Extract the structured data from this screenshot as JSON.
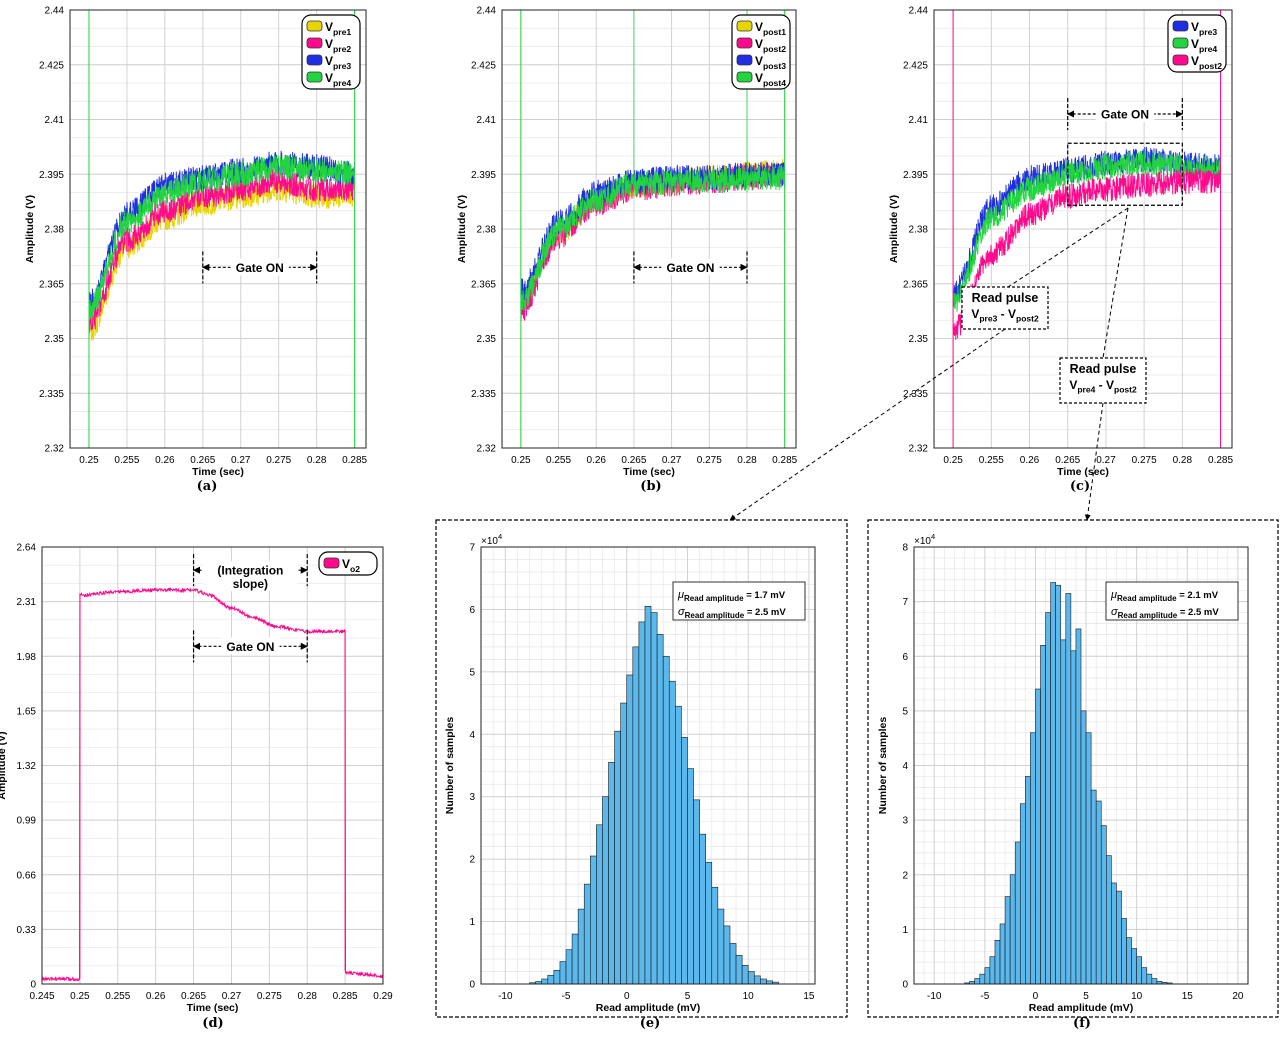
{
  "panels": [
    {
      "id": "a",
      "caption": "(a)",
      "chart_data": {
        "type": "line",
        "xlabel": "Time (sec)",
        "ylabel": "Amplitude (V)",
        "xlim": [
          0.2475,
          0.2865
        ],
        "ylim": [
          2.32,
          2.44
        ],
        "x_ticks": [
          "0.25",
          "0.255",
          "0.26",
          "0.265",
          "0.27",
          "0.275",
          "0.28",
          "0.285"
        ],
        "x_tick_values": [
          0.25,
          0.255,
          0.26,
          0.265,
          0.27,
          0.275,
          0.28,
          0.285
        ],
        "y_ticks": [
          "2.32",
          "2.335",
          "2.35",
          "2.365",
          "2.38",
          "2.395",
          "2.41",
          "2.425",
          "2.44"
        ],
        "y_tick_values": [
          2.32,
          2.335,
          2.35,
          2.365,
          2.38,
          2.395,
          2.41,
          2.425,
          2.44
        ],
        "grid": true,
        "legend_position": "top-right",
        "series": [
          {
            "name": "V",
            "sub": "pre1",
            "color": "#e8d400",
            "x": [
              0.25,
              0.255,
              0.26,
              0.265,
              0.27,
              0.275,
              0.28,
              0.285
            ],
            "values": [
              2.352,
              2.375,
              2.383,
              2.387,
              2.389,
              2.391,
              2.389,
              2.389
            ]
          },
          {
            "name": "V",
            "sub": "pre2",
            "color": "#ff0a8c",
            "x": [
              0.25,
              0.255,
              0.26,
              0.265,
              0.27,
              0.275,
              0.28,
              0.285
            ],
            "values": [
              2.354,
              2.377,
              2.385,
              2.389,
              2.391,
              2.393,
              2.391,
              2.391
            ]
          },
          {
            "name": "V",
            "sub": "pre3",
            "color": "#1f2ee0",
            "x": [
              0.25,
              0.255,
              0.26,
              0.265,
              0.27,
              0.275,
              0.28,
              0.285
            ],
            "values": [
              2.36,
              2.384,
              2.392,
              2.394,
              2.396,
              2.398,
              2.397,
              2.395
            ]
          },
          {
            "name": "V",
            "sub": "pre4",
            "color": "#22d440",
            "x": [
              0.25,
              0.255,
              0.26,
              0.265,
              0.27,
              0.275,
              0.28,
              0.285
            ],
            "values": [
              2.358,
              2.382,
              2.39,
              2.393,
              2.395,
              2.397,
              2.396,
              2.395
            ]
          }
        ],
        "annotations": [
          {
            "text": "Gate ON",
            "x_start": 0.265,
            "x_end": 0.28,
            "y": 2.3695
          }
        ]
      }
    },
    {
      "id": "b",
      "caption": "(b)",
      "chart_data": {
        "type": "line",
        "xlabel": "Time (sec)",
        "ylabel": "Amplitude (V)",
        "xlim": [
          0.2475,
          0.2865
        ],
        "ylim": [
          2.32,
          2.44
        ],
        "x_ticks": [
          "0.25",
          "0.255",
          "0.26",
          "0.265",
          "0.27",
          "0.275",
          "0.28",
          "0.285"
        ],
        "x_tick_values": [
          0.25,
          0.255,
          0.26,
          0.265,
          0.27,
          0.275,
          0.28,
          0.285
        ],
        "y_ticks": [
          "2.32",
          "2.335",
          "2.35",
          "2.365",
          "2.38",
          "2.395",
          "2.41",
          "2.425",
          "2.44"
        ],
        "y_tick_values": [
          2.32,
          2.335,
          2.35,
          2.365,
          2.38,
          2.395,
          2.41,
          2.425,
          2.44
        ],
        "grid": true,
        "legend_position": "top-right",
        "series": [
          {
            "name": "V",
            "sub": "post1",
            "color": "#e8d400",
            "x": [
              0.25,
              0.255,
              0.26,
              0.265,
              0.27,
              0.275,
              0.28,
              0.285
            ],
            "values": [
              2.36,
              2.379,
              2.388,
              2.392,
              2.393,
              2.394,
              2.395,
              2.396
            ]
          },
          {
            "name": "V",
            "sub": "post2",
            "color": "#ff0a8c",
            "x": [
              0.25,
              0.255,
              0.26,
              0.265,
              0.27,
              0.275,
              0.28,
              0.285
            ],
            "values": [
              2.358,
              2.378,
              2.387,
              2.391,
              2.392,
              2.393,
              2.394,
              2.395
            ]
          },
          {
            "name": "V",
            "sub": "post3",
            "color": "#1f2ee0",
            "x": [
              0.25,
              0.255,
              0.26,
              0.265,
              0.27,
              0.275,
              0.28,
              0.285
            ],
            "values": [
              2.363,
              2.382,
              2.39,
              2.393,
              2.394,
              2.394,
              2.395,
              2.395
            ]
          },
          {
            "name": "V",
            "sub": "post4",
            "color": "#22d440",
            "x": [
              0.25,
              0.255,
              0.26,
              0.265,
              0.27,
              0.275,
              0.28,
              0.285
            ],
            "values": [
              2.36,
              2.38,
              2.388,
              2.392,
              2.393,
              2.393,
              2.394,
              2.394
            ]
          }
        ],
        "annotations": [
          {
            "text": "Gate ON",
            "x_start": 0.265,
            "x_end": 0.28,
            "y": 2.3695
          }
        ]
      }
    },
    {
      "id": "c",
      "caption": "(c)",
      "chart_data": {
        "type": "line",
        "xlabel": "Time (sec)",
        "ylabel": "Amplitude (V)",
        "xlim": [
          0.2475,
          0.2865
        ],
        "ylim": [
          2.32,
          2.44
        ],
        "x_ticks": [
          "0.25",
          "0.255",
          "0.26",
          "0.265",
          "0.27",
          "0.275",
          "0.28",
          "0.285"
        ],
        "x_tick_values": [
          0.25,
          0.255,
          0.26,
          0.265,
          0.27,
          0.275,
          0.28,
          0.285
        ],
        "y_ticks": [
          "2.32",
          "2.335",
          "2.35",
          "2.365",
          "2.38",
          "2.395",
          "2.41",
          "2.425",
          "2.44"
        ],
        "y_tick_values": [
          2.32,
          2.335,
          2.35,
          2.365,
          2.38,
          2.395,
          2.41,
          2.425,
          2.44
        ],
        "grid": true,
        "legend_position": "top-right",
        "series": [
          {
            "name": "V",
            "sub": "pre3",
            "color": "#1f2ee0",
            "x": [
              0.25,
              0.255,
              0.26,
              0.265,
              0.27,
              0.275,
              0.28,
              0.285
            ],
            "values": [
              2.362,
              2.386,
              2.394,
              2.396,
              2.398,
              2.399,
              2.398,
              2.397
            ]
          },
          {
            "name": "V",
            "sub": "pre4",
            "color": "#22d440",
            "x": [
              0.25,
              0.255,
              0.26,
              0.265,
              0.27,
              0.275,
              0.28,
              0.285
            ],
            "values": [
              2.36,
              2.383,
              2.391,
              2.395,
              2.397,
              2.398,
              2.397,
              2.396
            ]
          },
          {
            "name": "V",
            "sub": "post2",
            "color": "#ff0a8c",
            "x": [
              0.25,
              0.255,
              0.26,
              0.265,
              0.27,
              0.275,
              0.28,
              0.285
            ],
            "values": [
              2.352,
              2.373,
              2.384,
              2.389,
              2.391,
              2.392,
              2.393,
              2.393
            ]
          }
        ],
        "annotations": [
          {
            "text": "Gate ON",
            "x_start": 0.265,
            "x_end": 0.28,
            "y": 2.4115
          },
          {
            "type": "box",
            "x_start": 0.265,
            "x_end": 0.28,
            "y_start": 2.3865,
            "y_end": 2.4035
          },
          {
            "type": "callout",
            "title": "Read pulse",
            "v1": "V",
            "v1_sub": "pre3",
            "sep": " - ",
            "v2": "V",
            "v2_sub": "post2",
            "target": "e"
          },
          {
            "type": "callout",
            "title": "Read pulse",
            "v1": "V",
            "v1_sub": "pre4",
            "sep": " - ",
            "v2": "V",
            "v2_sub": "post2",
            "target": "f"
          }
        ]
      }
    },
    {
      "id": "d",
      "caption": "(d)",
      "chart_data": {
        "type": "line",
        "xlabel": "Time (sec)",
        "ylabel": "Amplitude (V)",
        "xlim": [
          0.245,
          0.29
        ],
        "ylim": [
          0,
          2.64
        ],
        "x_ticks": [
          "0.245",
          "0.25",
          "0.255",
          "0.26",
          "0.265",
          "0.27",
          "0.275",
          "0.28",
          "0.285",
          "0.29"
        ],
        "x_tick_values": [
          0.245,
          0.25,
          0.255,
          0.26,
          0.265,
          0.27,
          0.275,
          0.28,
          0.285,
          0.29
        ],
        "y_ticks": [
          "0",
          "0.33",
          "0.66",
          "0.99",
          "1.32",
          "1.65",
          "1.98",
          "2.31",
          "2.64"
        ],
        "y_tick_values": [
          0,
          0.33,
          0.66,
          0.99,
          1.32,
          1.65,
          1.98,
          2.31,
          2.64
        ],
        "grid": true,
        "legend_position": "top-right",
        "series": [
          {
            "name": "V",
            "sub": "o2",
            "color": "#ff0a8c",
            "x": [
              0.245,
              0.2499,
              0.25,
              0.2501,
              0.255,
              0.26,
              0.265,
              0.267,
              0.27,
              0.273,
              0.276,
              0.28,
              0.2849,
              0.285,
              0.2851,
              0.29
            ],
            "values": [
              0.03,
              0.03,
              2.36,
              2.35,
              2.37,
              2.38,
              2.38,
              2.35,
              2.27,
              2.21,
              2.16,
              2.13,
              2.13,
              0.08,
              0.08,
              0.05
            ]
          }
        ],
        "annotations": [
          {
            "text": "(Integration",
            "text2": "slope)",
            "x_start": 0.265,
            "x_end": 0.28,
            "y": 2.5
          },
          {
            "text": "Gate ON",
            "x_start": 0.265,
            "x_end": 0.28,
            "y": 2.04
          }
        ]
      }
    },
    {
      "id": "e",
      "caption": "(e)",
      "chart_data": {
        "type": "bar",
        "xlabel": "Read amplitude (mV)",
        "ylabel": "Number of samples",
        "y_exponent_base": "×10",
        "y_exponent": "4",
        "xlim": [
          -12,
          15.5
        ],
        "ylim": [
          0,
          7
        ],
        "x_ticks": [
          "-10",
          "-5",
          "0",
          "5",
          "10",
          "15"
        ],
        "x_tick_values": [
          -10,
          -5,
          0,
          5,
          10,
          15
        ],
        "y_ticks": [
          "0",
          "1",
          "2",
          "3",
          "4",
          "5",
          "6",
          "7"
        ],
        "y_tick_values": [
          0,
          1,
          2,
          3,
          4,
          5,
          6,
          7
        ],
        "grid": true,
        "bin_start": -8,
        "bin_width": 0.5,
        "color": "#5bb8ec",
        "values": [
          0.02,
          0.04,
          0.08,
          0.14,
          0.22,
          0.36,
          0.55,
          0.8,
          1.2,
          1.6,
          2.05,
          2.55,
          3.0,
          3.55,
          4.05,
          4.5,
          4.95,
          5.4,
          5.8,
          6.05,
          5.95,
          5.6,
          5.25,
          4.85,
          4.45,
          3.95,
          3.45,
          2.95,
          2.4,
          1.95,
          1.55,
          1.2,
          0.93,
          0.65,
          0.46,
          0.3,
          0.2,
          0.13,
          0.08,
          0.05,
          0.03
        ],
        "stats": {
          "mu_sym": "μ",
          "mu_sub": "Read amplitude",
          "mu_val": "= 1.7 mV",
          "sigma_sym": "σ",
          "sigma_sub": "Read amplitude",
          "sigma_val": "= 2.5 mV"
        }
      }
    },
    {
      "id": "f",
      "caption": "(f)",
      "chart_data": {
        "type": "bar",
        "xlabel": "Read amplitude (mV)",
        "ylabel": "Number of samples",
        "y_exponent_base": "×10",
        "y_exponent": "4",
        "xlim": [
          -12,
          21
        ],
        "ylim": [
          0,
          8
        ],
        "x_ticks": [
          "-10",
          "-5",
          "0",
          "5",
          "10",
          "15",
          "20"
        ],
        "x_tick_values": [
          -10,
          -5,
          0,
          5,
          10,
          15,
          20
        ],
        "y_ticks": [
          "0",
          "1",
          "2",
          "3",
          "4",
          "5",
          "6",
          "7",
          "8"
        ],
        "y_tick_values": [
          0,
          1,
          2,
          3,
          4,
          5,
          6,
          7,
          8
        ],
        "grid": true,
        "bin_start": -7,
        "bin_width": 0.5,
        "color": "#5bb8ec",
        "values": [
          0.02,
          0.05,
          0.1,
          0.18,
          0.3,
          0.5,
          0.8,
          1.1,
          1.6,
          2.0,
          2.6,
          3.3,
          3.8,
          4.6,
          5.4,
          6.2,
          6.8,
          7.35,
          7.3,
          6.3,
          7.15,
          6.1,
          6.5,
          5.0,
          4.6,
          3.55,
          3.35,
          2.9,
          2.35,
          1.85,
          1.7,
          1.2,
          0.85,
          0.65,
          0.5,
          0.3,
          0.18,
          0.1,
          0.05,
          0.03,
          0.02
        ],
        "stats": {
          "mu_sym": "μ",
          "mu_sub": "Read amplitude",
          "mu_val": "= 2.1 mV",
          "sigma_sym": "σ",
          "sigma_sub": "Read amplitude",
          "sigma_val": "= 2.5 mV"
        }
      }
    }
  ]
}
